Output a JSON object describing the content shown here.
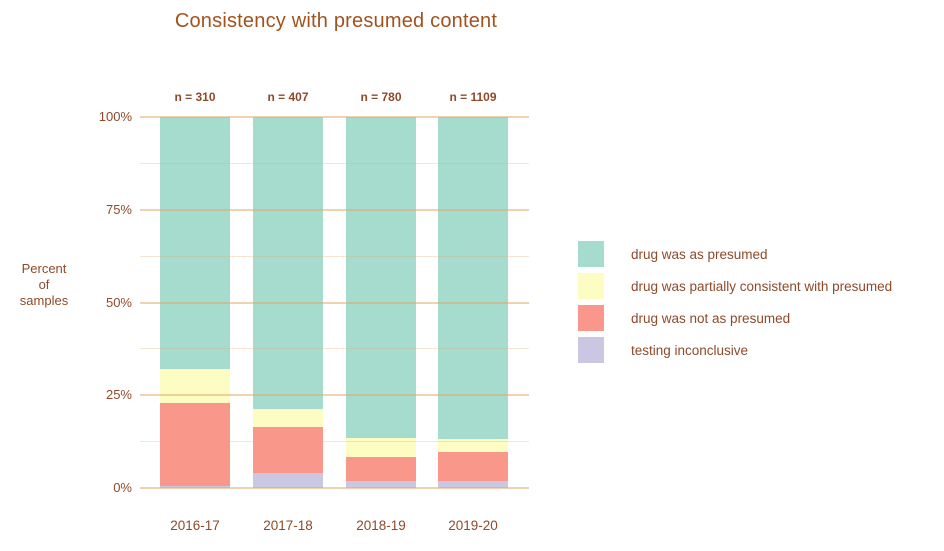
{
  "title": "Consistency with presumed content",
  "colors": {
    "title_text": "#a3521e",
    "body_text": "#8e4a29",
    "gridline": "#e0a86c",
    "background": "#ffffff"
  },
  "y_axis": {
    "title_lines": [
      "Percent",
      "of",
      "samples"
    ],
    "ticks": [
      "0%",
      "25%",
      "50%",
      "75%",
      "100%"
    ]
  },
  "chart_data": {
    "type": "bar",
    "stacked": true,
    "title": "Consistency with presumed content",
    "ylabel": "Percent of samples",
    "categories": [
      "2016-17",
      "2017-18",
      "2018-19",
      "2019-20"
    ],
    "n_labels": [
      "n = 310",
      "n = 407",
      "n = 780",
      "n = 1109"
    ],
    "sample_sizes": [
      310,
      407,
      780,
      1109
    ],
    "series": [
      {
        "name": "drug was as presumed",
        "color": "#a5dccd",
        "values_pct": [
          68.0,
          78.7,
          86.6,
          86.8
        ]
      },
      {
        "name": "drug was partially consistent with presumed",
        "color": "#fdfcc2",
        "values_pct": [
          9.0,
          4.8,
          5.0,
          3.4
        ]
      },
      {
        "name": "drug was not as presumed",
        "color": "#fa978b",
        "values_pct": [
          22.5,
          12.5,
          6.4,
          7.9
        ]
      },
      {
        "name": "testing inconclusive",
        "color": "#cbc7e2",
        "values_pct": [
          0.5,
          4.0,
          2.0,
          1.9
        ]
      }
    ],
    "ylim": [
      0,
      100
    ],
    "yticks_pct": [
      0,
      25,
      50,
      75,
      100
    ],
    "grid": true,
    "legend_position": "right"
  }
}
